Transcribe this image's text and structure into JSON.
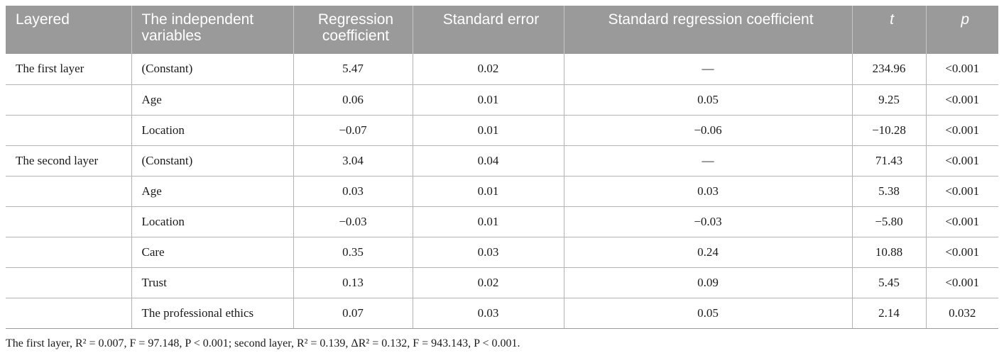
{
  "table": {
    "headers": [
      "Layered",
      "The independent variables",
      "Regression coefficient",
      "Standard error",
      "Standard regression coefficient",
      "t",
      "p"
    ],
    "rows": [
      [
        "The first layer",
        "(Constant)",
        "5.47",
        "0.02",
        "—",
        "234.96",
        "<0.001"
      ],
      [
        "",
        "Age",
        "0.06",
        "0.01",
        "0.05",
        "9.25",
        "<0.001"
      ],
      [
        "",
        "Location",
        "−0.07",
        "0.01",
        "−0.06",
        "−10.28",
        "<0.001"
      ],
      [
        "The second layer",
        "(Constant)",
        "3.04",
        "0.04",
        "—",
        "71.43",
        "<0.001"
      ],
      [
        "",
        "Age",
        "0.03",
        "0.01",
        "0.03",
        "5.38",
        "<0.001"
      ],
      [
        "",
        "Location",
        "−0.03",
        "0.01",
        "−0.03",
        "−5.80",
        "<0.001"
      ],
      [
        "",
        "Care",
        "0.35",
        "0.03",
        "0.24",
        "10.88",
        "<0.001"
      ],
      [
        "",
        "Trust",
        "0.13",
        "0.02",
        "0.09",
        "5.45",
        "<0.001"
      ],
      [
        "",
        "The professional ethics",
        "0.07",
        "0.03",
        "0.05",
        "2.14",
        "0.032"
      ]
    ]
  },
  "footnote": "The first layer, R² = 0.007, F = 97.148, P < 0.001; second layer, R² = 0.139, ΔR² = 0.132, F = 943.143, P < 0.001."
}
